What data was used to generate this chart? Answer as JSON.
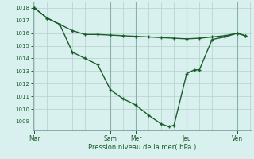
{
  "xlabel": "Pression niveau de la mer( hPa )",
  "bg_color": "#d8f0ee",
  "line_color": "#1a5c2a",
  "grid_major_color": "#b8cece",
  "grid_minor_color": "#cce0de",
  "ylim": [
    1008.3,
    1018.5
  ],
  "yticks": [
    1009,
    1010,
    1011,
    1012,
    1013,
    1014,
    1015,
    1016,
    1017,
    1018
  ],
  "xtick_labels": [
    "Mar",
    "",
    "",
    "Sam",
    "Mer",
    "",
    "Jeu",
    "",
    "Ven"
  ],
  "xtick_positions": [
    0,
    1,
    2,
    3,
    4,
    5,
    6,
    7,
    8
  ],
  "day_vlines": [
    3,
    4,
    6,
    8
  ],
  "line1_x": [
    0,
    0.5,
    1.0,
    1.5,
    2.0,
    2.5,
    3.0,
    3.5,
    4.0,
    4.5,
    5.0,
    5.5,
    6.0,
    6.5,
    7.0,
    7.5,
    8.0,
    8.3
  ],
  "line1_y": [
    1018.0,
    1017.2,
    1016.7,
    1016.2,
    1015.9,
    1015.9,
    1015.85,
    1015.8,
    1015.75,
    1015.7,
    1015.65,
    1015.6,
    1015.55,
    1015.6,
    1015.7,
    1015.8,
    1016.0,
    1015.8
  ],
  "line2_x": [
    0,
    0.5,
    1.0,
    1.5,
    2.0,
    2.5,
    3.0,
    3.5,
    4.0,
    4.5,
    5.0,
    5.3,
    5.5,
    6.0,
    6.3,
    6.5,
    7.0,
    7.5,
    8.0,
    8.3
  ],
  "line2_y": [
    1018.0,
    1017.2,
    1016.7,
    1014.5,
    1014.0,
    1013.5,
    1011.5,
    1010.8,
    1010.3,
    1009.5,
    1008.8,
    1008.6,
    1008.7,
    1012.8,
    1013.1,
    1013.1,
    1015.5,
    1015.7,
    1016.0,
    1015.8
  ]
}
